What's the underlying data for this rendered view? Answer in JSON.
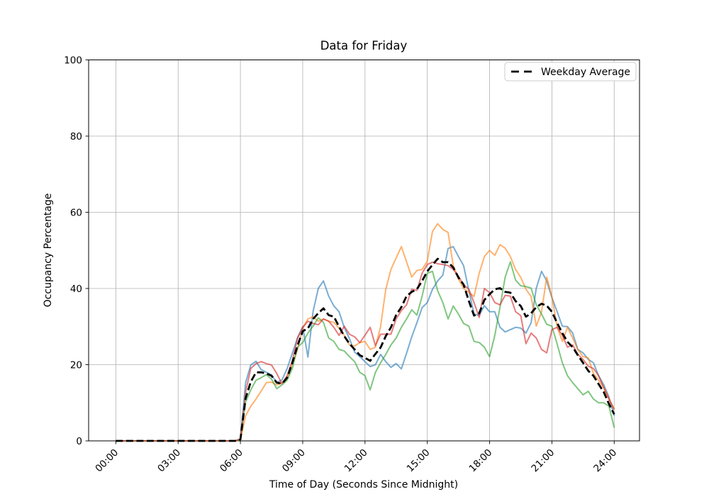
{
  "chart_data": {
    "type": "line",
    "title": "Data for Friday",
    "xlabel": "Time of Day (Seconds Since Midnight)",
    "ylabel": "Occupancy Percentage",
    "ylim": [
      0,
      100
    ],
    "xlim_hours": [
      -1.31,
      25.22
    ],
    "grid": true,
    "grid_color": "#b0b0b0",
    "x_ticks": [
      {
        "hour": 0,
        "label": "00:00"
      },
      {
        "hour": 3,
        "label": "03:00"
      },
      {
        "hour": 6,
        "label": "06:00"
      },
      {
        "hour": 9,
        "label": "09:00"
      },
      {
        "hour": 12,
        "label": "12:00"
      },
      {
        "hour": 15,
        "label": "15:00"
      },
      {
        "hour": 18,
        "label": "18:00"
      },
      {
        "hour": 21,
        "label": "21:00"
      },
      {
        "hour": 24,
        "label": "24:00"
      }
    ],
    "y_ticks": [
      0,
      20,
      40,
      60,
      80,
      100
    ],
    "legend": {
      "position": "upper right",
      "entries": [
        {
          "label": "Weekday Average",
          "style": "dashed",
          "color": "#000000"
        }
      ]
    },
    "x_start_hour": 0,
    "x_step_hours": 0.25,
    "series": [
      {
        "id": "friday-series-1",
        "color": "#1f77b4",
        "opacity": 0.6,
        "width": 2,
        "style": "solid",
        "values": [
          0,
          0,
          0,
          0,
          0,
          0,
          0,
          0,
          0,
          0,
          0,
          0,
          0,
          0,
          0,
          0,
          0,
          0,
          0,
          0,
          0,
          0,
          0,
          0,
          0.5,
          15.3,
          19.9,
          20.9,
          18.7,
          18,
          17.3,
          15.3,
          16,
          19,
          23,
          27,
          30,
          22,
          34,
          40,
          42,
          38,
          35.4,
          33.9,
          29.8,
          26.8,
          23.3,
          22.1,
          20.8,
          19.5,
          20,
          22.7,
          20.8,
          19.3,
          20.3,
          18.9,
          23,
          27.3,
          31,
          35,
          36.3,
          39.8,
          42,
          43.5,
          50.5,
          51,
          48.4,
          46,
          39.4,
          33.3,
          32.9,
          35.5,
          33.9,
          33.9,
          29.8,
          28.6,
          29.2,
          29.8,
          29.6,
          28.3,
          31,
          40.1,
          44.5,
          42,
          37.6,
          34,
          30.1,
          30,
          28.3,
          24,
          23.1,
          21.4,
          20.5,
          17.1,
          14.7,
          11.5,
          6.6
        ]
      },
      {
        "id": "friday-series-2",
        "color": "#ff7f0e",
        "opacity": 0.6,
        "width": 2,
        "style": "solid",
        "values": [
          0,
          0,
          0,
          0,
          0,
          0,
          0,
          0,
          0,
          0,
          0,
          0,
          0,
          0,
          0,
          0,
          0,
          0,
          0,
          0,
          0,
          0,
          0,
          0,
          0.3,
          6.6,
          9.1,
          11,
          13.1,
          15.3,
          15.4,
          14.7,
          15.3,
          16.6,
          20,
          24,
          29.6,
          32,
          32.6,
          31.4,
          32,
          31.4,
          31.1,
          29.6,
          27.7,
          25.2,
          24.9,
          25.8,
          26.1,
          24,
          24.6,
          30,
          39.8,
          45,
          48,
          51,
          47,
          43,
          44.7,
          45,
          47.2,
          55,
          57,
          55.5,
          54.7,
          46,
          42.5,
          40,
          39,
          37.9,
          44,
          48.4,
          50,
          48.7,
          51.5,
          50.6,
          48.4,
          45,
          42.9,
          39.8,
          37.9,
          30.1,
          33.9,
          43,
          37.9,
          30,
          26.1,
          29.8,
          27,
          24,
          22.1,
          21.8,
          17.7,
          15.9,
          14,
          11,
          8.4
        ]
      },
      {
        "id": "friday-series-3",
        "color": "#2ca02c",
        "opacity": 0.6,
        "width": 2,
        "style": "solid",
        "values": [
          0,
          0,
          0,
          0,
          0,
          0,
          0,
          0,
          0,
          0,
          0,
          0,
          0,
          0,
          0,
          0,
          0,
          0,
          0,
          0,
          0,
          0,
          0,
          0,
          0.3,
          10.2,
          13.4,
          15.9,
          16.6,
          17.4,
          16.2,
          13.7,
          14.7,
          15.9,
          19,
          24.6,
          25.8,
          28.3,
          30.1,
          32.3,
          31.1,
          27,
          26.1,
          24,
          23.6,
          22.1,
          20.8,
          18,
          17.1,
          13.4,
          18,
          20.5,
          22.7,
          25.2,
          27,
          29.8,
          32,
          34.4,
          33,
          38,
          44,
          44.5,
          39.4,
          36.3,
          32,
          35.4,
          33.3,
          30.8,
          30.1,
          26.1,
          25.8,
          24.6,
          22.1,
          27.7,
          35.1,
          43,
          47,
          42.2,
          40.7,
          40.5,
          40.1,
          35.7,
          33.3,
          30.6,
          30.1,
          25.5,
          20.5,
          17.1,
          15.3,
          13.7,
          12.1,
          13,
          11,
          10,
          10,
          9.1,
          3.5
        ]
      },
      {
        "id": "friday-series-4",
        "color": "#d62728",
        "opacity": 0.6,
        "width": 2,
        "style": "solid",
        "values": [
          0,
          0,
          0,
          0,
          0,
          0,
          0,
          0,
          0,
          0,
          0,
          0,
          0,
          0,
          0,
          0,
          0,
          0,
          0,
          0,
          0,
          0,
          0,
          0,
          0.5,
          12.8,
          19,
          20.3,
          20.8,
          20.3,
          19.9,
          17.7,
          15,
          17.1,
          21,
          27,
          29.8,
          31.4,
          30.8,
          30.5,
          32,
          31.4,
          29.8,
          27.7,
          30.1,
          28,
          27.3,
          25.8,
          27.7,
          29.8,
          25,
          28,
          28,
          28,
          32,
          34.2,
          35.7,
          39.8,
          39.5,
          44,
          46.3,
          46.9,
          46.5,
          46.3,
          46,
          45,
          43.2,
          41,
          39.8,
          36.3,
          32.4,
          40,
          38.9,
          36.3,
          35.7,
          38.2,
          38,
          33.9,
          32.9,
          25.5,
          28.3,
          27,
          24,
          23.1,
          29.2,
          29.8,
          27.7,
          24.6,
          25.2,
          22.7,
          21.4,
          19.6,
          19,
          17.1,
          14,
          11,
          8.2
        ]
      },
      {
        "id": "weekday-average",
        "label": "Weekday Average",
        "color": "#000000",
        "opacity": 1,
        "width": 2.8,
        "style": "dashed",
        "values": [
          0,
          0,
          0,
          0,
          0,
          0,
          0,
          0,
          0,
          0,
          0,
          0,
          0,
          0,
          0,
          0,
          0,
          0,
          0,
          0,
          0,
          0,
          0,
          0,
          0.4,
          11.2,
          15.5,
          18,
          18,
          17.7,
          17.1,
          15.3,
          15,
          16.6,
          20.5,
          25,
          28.8,
          29.5,
          32,
          33.5,
          34.8,
          33,
          32.6,
          30,
          27.5,
          25.5,
          24,
          22.5,
          21.8,
          21,
          22.8,
          24.5,
          27.5,
          29.8,
          33,
          35.1,
          38,
          39.1,
          39.8,
          42,
          44.5,
          46.2,
          47.8,
          46.9,
          46.9,
          45.5,
          42.9,
          41,
          36.7,
          32.9,
          33.5,
          37,
          38.5,
          39.8,
          40.1,
          39.1,
          38.9,
          36.7,
          35.4,
          32.6,
          33.5,
          35.1,
          36,
          35.5,
          33.9,
          31,
          28.3,
          26,
          24.6,
          22.5,
          20.5,
          18.4,
          17.1,
          14.9,
          12.8,
          9.7,
          7
        ]
      }
    ]
  }
}
